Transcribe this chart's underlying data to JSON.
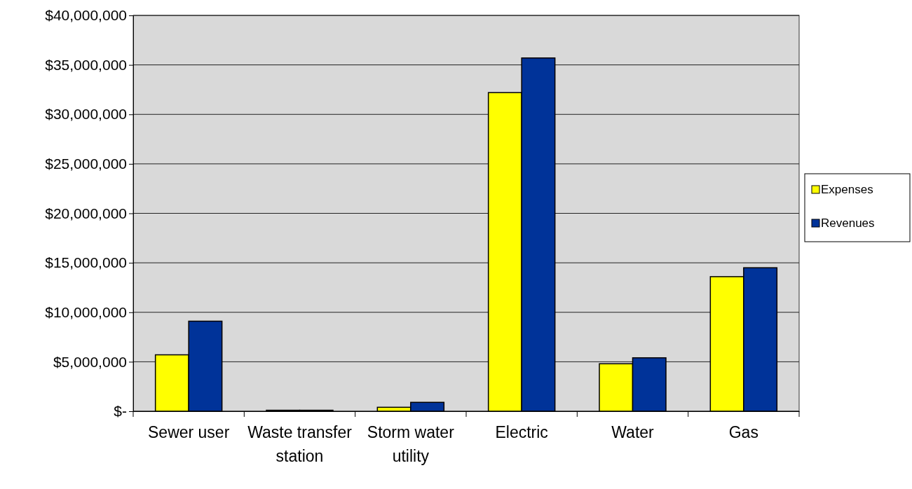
{
  "chart_data": {
    "type": "bar",
    "categories": [
      "Sewer user",
      "Waste transfer station",
      "Storm water utility",
      "Electric",
      "Water",
      "Gas"
    ],
    "series": [
      {
        "name": "Expenses",
        "color": "#ffff00",
        "values": [
          5700000,
          100000,
          400000,
          32200000,
          4800000,
          13600000
        ]
      },
      {
        "name": "Revenues",
        "color": "#003399",
        "values": [
          9100000,
          100000,
          900000,
          35700000,
          5400000,
          14500000
        ]
      }
    ],
    "ylim": [
      0,
      40000000
    ],
    "yticks": [
      {
        "value": 0,
        "label": "$-"
      },
      {
        "value": 5000000,
        "label": "$5,000,000"
      },
      {
        "value": 10000000,
        "label": "$10,000,000"
      },
      {
        "value": 15000000,
        "label": "$15,000,000"
      },
      {
        "value": 20000000,
        "label": "$20,000,000"
      },
      {
        "value": 25000000,
        "label": "$25,000,000"
      },
      {
        "value": 30000000,
        "label": "$30,000,000"
      },
      {
        "value": 35000000,
        "label": "$35,000,000"
      },
      {
        "value": 40000000,
        "label": "$40,000,000"
      }
    ],
    "grid": "y",
    "legend": "right"
  }
}
